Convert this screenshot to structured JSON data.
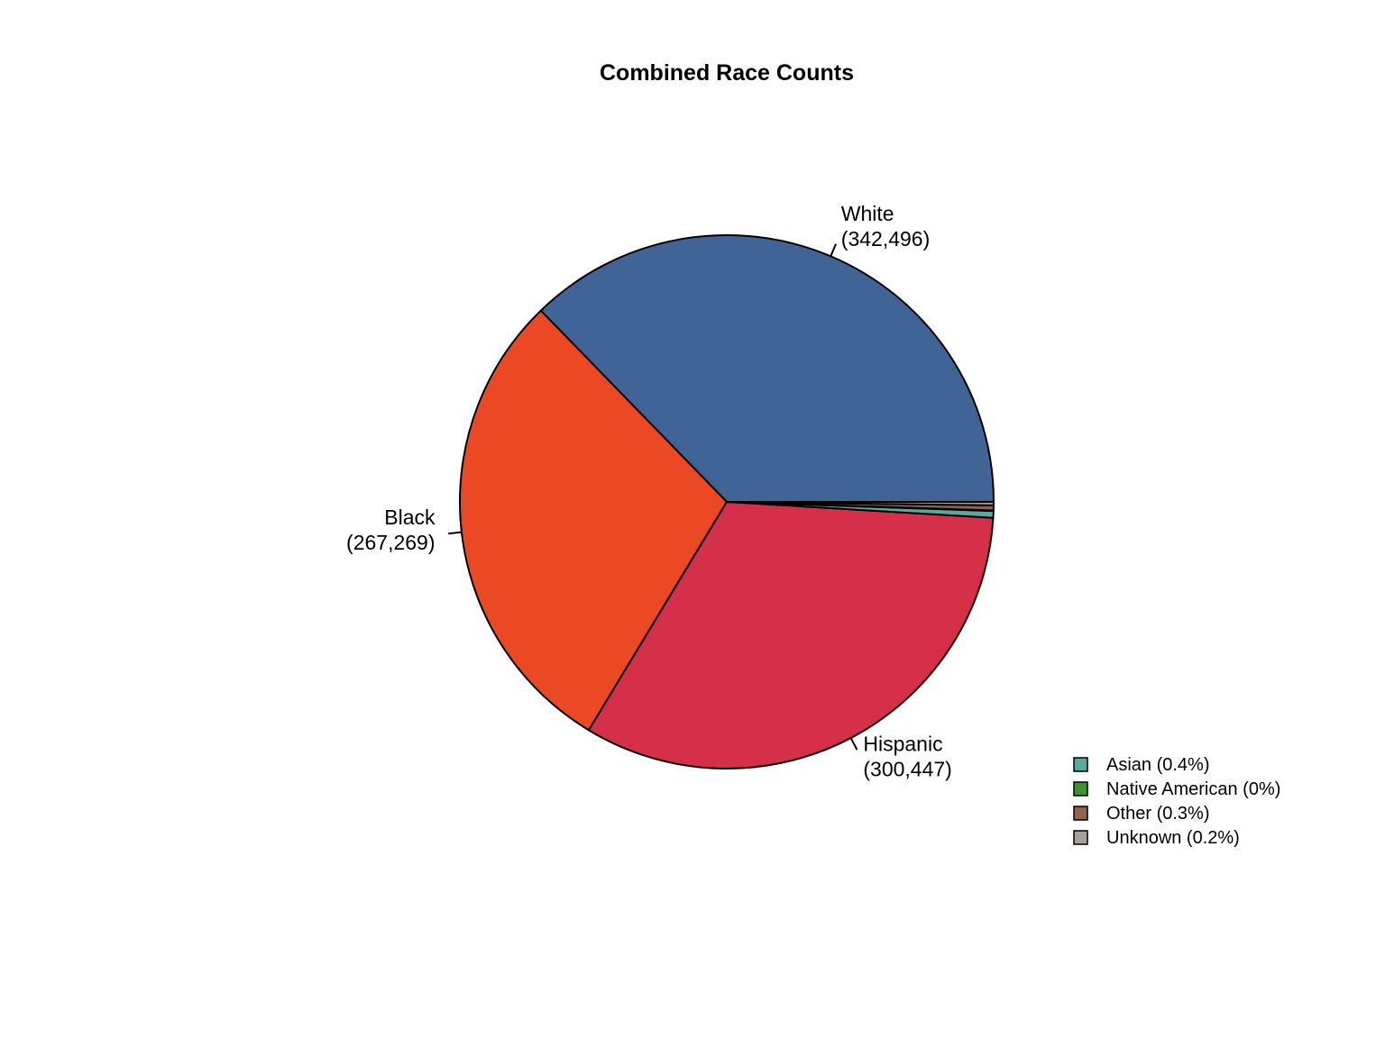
{
  "chart_data": {
    "type": "pie",
    "title": "Combined Race Counts",
    "slices": [
      {
        "name": "White",
        "value": 342496,
        "label_name": "White",
        "label_value": "(342,496)",
        "color": "#3f6495",
        "labeled": true
      },
      {
        "name": "Black",
        "value": 267269,
        "label_name": "Black",
        "label_value": "(267,269)",
        "color": "#eb4923",
        "labeled": true
      },
      {
        "name": "Hispanic",
        "value": 300447,
        "label_name": "Hispanic",
        "label_value": "(300,447)",
        "color": "#d62f49",
        "labeled": true
      },
      {
        "name": "Asian",
        "value": 3800,
        "color": "#5ba89e",
        "labeled": false
      },
      {
        "name": "Native American",
        "value": 300,
        "color": "#3f9234",
        "labeled": false
      },
      {
        "name": "Other",
        "value": 2800,
        "color": "#8c6451",
        "labeled": false
      },
      {
        "name": "Unknown",
        "value": 1900,
        "color": "#a8a09d",
        "labeled": false
      }
    ],
    "legend": {
      "placement": "bottom-right",
      "items": [
        {
          "label": "Asian (0.4%)",
          "color": "#5ba89e"
        },
        {
          "label": "Native American (0%)",
          "color": "#3f9234"
        },
        {
          "label": "Other (0.3%)",
          "color": "#8c6451"
        },
        {
          "label": "Unknown (0.2%)",
          "color": "#a8a09d"
        }
      ]
    }
  }
}
